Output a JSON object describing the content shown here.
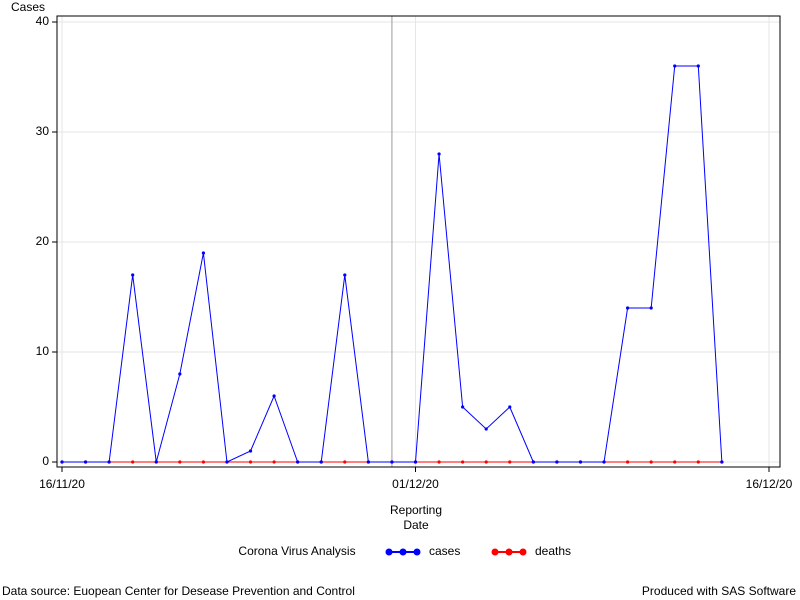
{
  "chart_data": {
    "type": "line",
    "ylabel": "Cases",
    "xlabel": [
      "Reporting",
      "Date"
    ],
    "x": [
      "2020-11-16",
      "2020-11-17",
      "2020-11-18",
      "2020-11-19",
      "2020-11-20",
      "2020-11-21",
      "2020-11-22",
      "2020-11-23",
      "2020-11-24",
      "2020-11-25",
      "2020-11-26",
      "2020-11-27",
      "2020-11-28",
      "2020-11-29",
      "2020-11-30",
      "2020-12-01",
      "2020-12-02",
      "2020-12-03",
      "2020-12-04",
      "2020-12-05",
      "2020-12-06",
      "2020-12-07",
      "2020-12-08",
      "2020-12-09",
      "2020-12-10",
      "2020-12-11",
      "2020-12-12",
      "2020-12-13",
      "2020-12-14"
    ],
    "series": [
      {
        "name": "cases",
        "color": "#0000ff",
        "values": [
          0,
          0,
          0,
          17,
          0,
          8,
          19,
          0,
          1,
          6,
          0,
          0,
          17,
          0,
          0,
          0,
          28,
          5,
          3,
          5,
          0,
          0,
          0,
          0,
          14,
          14,
          36,
          36,
          0
        ]
      },
      {
        "name": "deaths",
        "color": "#ff0000",
        "values": [
          0,
          0,
          0,
          0,
          0,
          0,
          0,
          0,
          0,
          0,
          0,
          0,
          0,
          0,
          0,
          0,
          0,
          0,
          0,
          0,
          0,
          0,
          0,
          0,
          0,
          0,
          0,
          0,
          0
        ]
      }
    ],
    "xlim": [
      "2020-11-16",
      "2020-12-16"
    ],
    "xticks": [
      {
        "value": "2020-11-16",
        "label": "16/11/20"
      },
      {
        "value": "2020-12-01",
        "label": "01/12/20"
      },
      {
        "value": "2020-12-16",
        "label": "16/12/20"
      }
    ],
    "ylim": [
      0,
      40
    ],
    "yticks": [
      0,
      10,
      20,
      30,
      40
    ],
    "grid": true,
    "refline": "2020-11-30",
    "legend_title": "Corona Virus Analysis",
    "legend_position": "bottom",
    "footnote_left": "Data source: Euopean Center for Desease Prevention and Control",
    "footnote_right": "Produced with SAS Software"
  }
}
